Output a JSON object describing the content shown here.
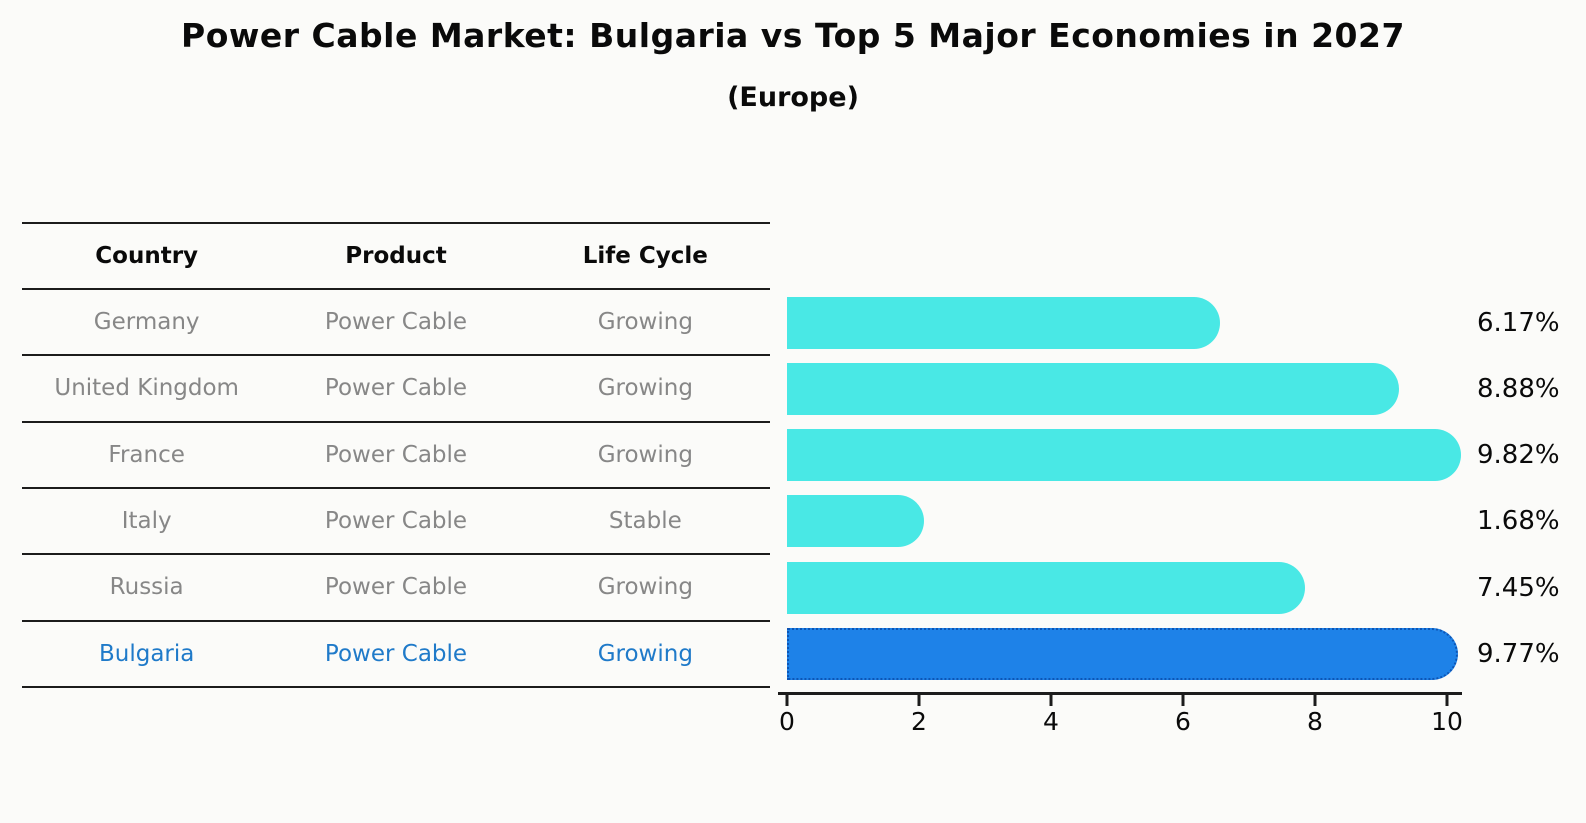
{
  "title": "Power Cable Market: Bulgaria vs Top 5 Major Economies in 2027",
  "subtitle": "(Europe)",
  "table": {
    "headers": [
      "Country",
      "Product",
      "Life Cycle"
    ],
    "rows": [
      {
        "country": "Germany",
        "product": "Power Cable",
        "life_cycle": "Growing",
        "highlight": false
      },
      {
        "country": "United Kingdom",
        "product": "Power Cable",
        "life_cycle": "Growing",
        "highlight": false
      },
      {
        "country": "France",
        "product": "Power Cable",
        "life_cycle": "Growing",
        "highlight": false
      },
      {
        "country": "Italy",
        "product": "Power Cable",
        "life_cycle": "Stable",
        "highlight": false
      },
      {
        "country": "Russia",
        "product": "Power Cable",
        "life_cycle": "Growing",
        "highlight": false
      },
      {
        "country": "Bulgaria",
        "product": "Power Cable",
        "life_cycle": "Growing",
        "highlight": true
      }
    ]
  },
  "chart_data": {
    "type": "bar",
    "orientation": "horizontal",
    "title": "Power Cable Market: Bulgaria vs Top 5 Major Economies in 2027",
    "subtitle": "(Europe)",
    "categories": [
      "Germany",
      "United Kingdom",
      "France",
      "Italy",
      "Russia",
      "Bulgaria"
    ],
    "values": [
      6.17,
      8.88,
      9.82,
      1.68,
      7.45,
      9.77
    ],
    "value_labels": [
      "6.17%",
      "8.88%",
      "9.82%",
      "1.68%",
      "7.45%",
      "9.77%"
    ],
    "unit": "%",
    "xlim": [
      0,
      10
    ],
    "x_ticks": [
      0,
      2,
      4,
      6,
      8,
      10
    ],
    "bar_color": "#49E8E5",
    "highlight_color": "#1E82E8",
    "highlight_index": 5,
    "grid": false,
    "legend": false
  },
  "colors": {
    "background": "#fbfbf9",
    "heading_text": "#0a0a0a",
    "table_text": "#878787",
    "highlight_text": "#1f7ac9",
    "line": "#1c1c1c"
  }
}
